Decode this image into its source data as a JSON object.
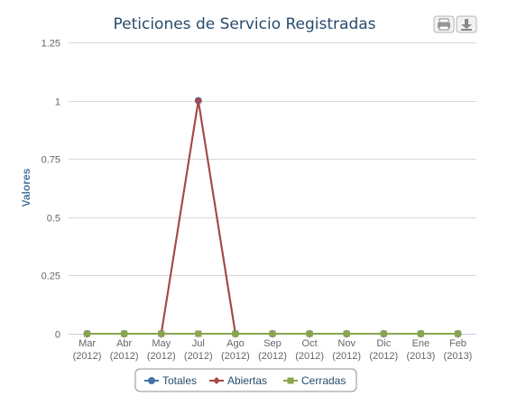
{
  "export_buttons": {
    "print_icon": "printer-icon",
    "download_icon": "download-icon"
  },
  "colors": {
    "title": "#274b6d",
    "grid": "#d8d8d8",
    "axis_label": "#4d759e",
    "Totales": "#4572a7",
    "Abiertas": "#aa4643",
    "Cerradas": "#89a54e"
  },
  "chart_data": {
    "type": "line",
    "title": "Peticiones de Servicio Registradas",
    "xlabel": "",
    "ylabel": "Valores",
    "ylim": [
      0,
      1.25
    ],
    "yticks": [
      "0",
      "0.25",
      "0.5",
      "0.75",
      "1",
      "1.25"
    ],
    "grid": true,
    "legend_position": "bottom-center",
    "categories": [
      [
        "Mar",
        "(2012)"
      ],
      [
        "Abr",
        "(2012)"
      ],
      [
        "May",
        "(2012)"
      ],
      [
        "Jul",
        "(2012)"
      ],
      [
        "Ago",
        "(2012)"
      ],
      [
        "Sep",
        "(2012)"
      ],
      [
        "Oct",
        "(2012)"
      ],
      [
        "Nov",
        "(2012)"
      ],
      [
        "Dic",
        "(2012)"
      ],
      [
        "Ene",
        "(2013)"
      ],
      [
        "Feb",
        "(2013)"
      ]
    ],
    "series": [
      {
        "name": "Totales",
        "marker": "circle",
        "values": [
          0,
          0,
          0,
          1,
          0,
          0,
          0,
          0,
          0,
          0,
          0
        ]
      },
      {
        "name": "Abiertas",
        "marker": "diamond",
        "values": [
          0,
          0,
          0,
          1,
          0,
          0,
          0,
          0,
          0,
          0,
          0
        ]
      },
      {
        "name": "Cerradas",
        "marker": "square",
        "values": [
          0,
          0,
          0,
          0,
          0,
          0,
          0,
          0,
          0,
          0,
          0
        ]
      }
    ]
  }
}
